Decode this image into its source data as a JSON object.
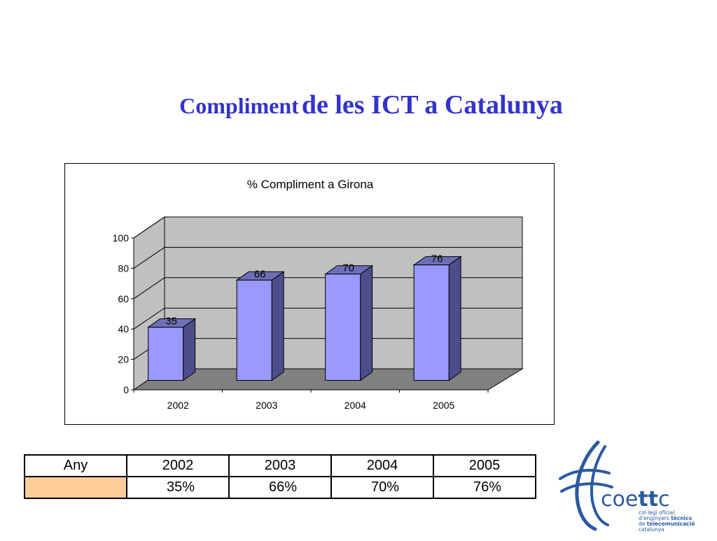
{
  "slide": {
    "title_part1": "Compliment",
    "title_part2": "de les ICT a Catalunya"
  },
  "chart_data": {
    "type": "bar",
    "title": "% Compliment a Girona",
    "categories": [
      "2002",
      "2003",
      "2004",
      "2005"
    ],
    "values": [
      35,
      66,
      70,
      76
    ],
    "ylim": [
      0,
      100
    ],
    "yticks": [
      0,
      20,
      40,
      60,
      80,
      100
    ],
    "grid": true,
    "legend": "none",
    "style": "3d",
    "colors": {
      "bar_front": "#9999ff",
      "bar_side": "#4d4d8c",
      "bar_top": "#6f6fb8",
      "back_wall": "#c0c0c0",
      "floor": "#808080"
    }
  },
  "table": {
    "header": [
      "Any",
      "2002",
      "2003",
      "2004",
      "2005"
    ],
    "row": [
      "",
      "35%",
      "66%",
      "70%",
      "76%"
    ],
    "swatch_color": "#ffcc99"
  },
  "logo": {
    "brand_prefix": "coe",
    "brand_bold": "tt",
    "brand_suffix": "c",
    "line1": "col·legi oficial",
    "line2_a": "d'enginyers ",
    "line2_b": "tècnics",
    "line3_a": "de ",
    "line3_b": "telecomunicació",
    "line4": "catalunya",
    "color": "#2a5aa0"
  }
}
